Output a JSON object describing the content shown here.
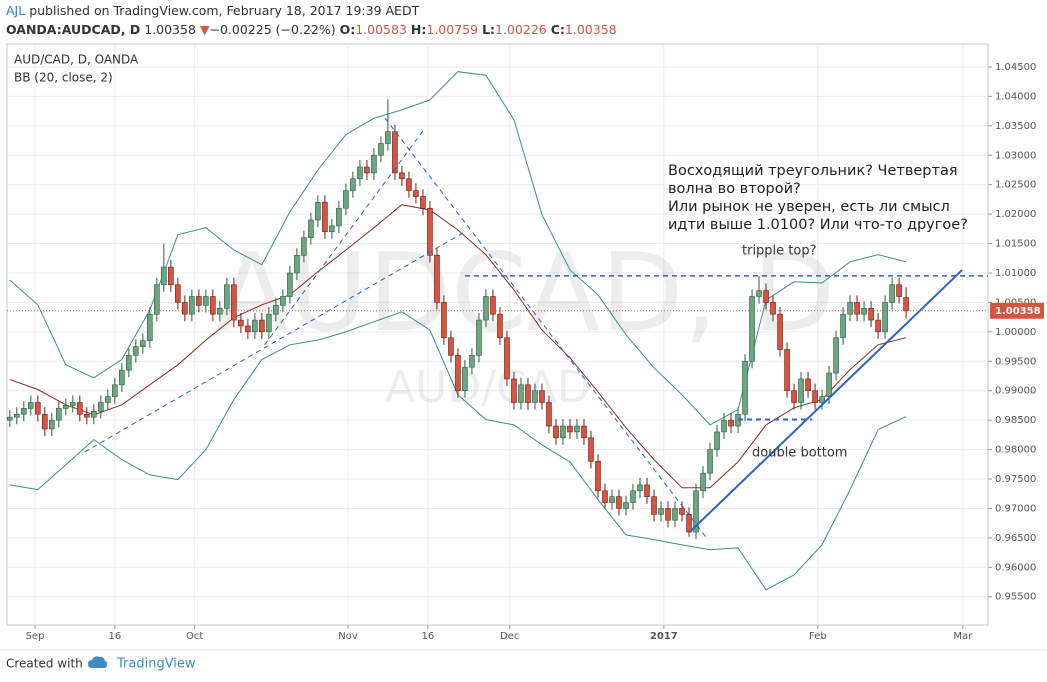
{
  "header": {
    "author": "AJL",
    "published": "published on TradingView.com, February 18, 2017 19:39 AEDT",
    "symbol": "OANDA:AUDCAD, D",
    "last": "1.00358",
    "direction": "▼",
    "change": "−0.00225 (−0.22%)",
    "ohlc": [
      {
        "label": "O:",
        "value": "1.00583"
      },
      {
        "label": "H:",
        "value": "1.00759"
      },
      {
        "label": "L:",
        "value": "1.00226"
      },
      {
        "label": "C:",
        "value": "1.00358"
      }
    ]
  },
  "footer": {
    "created_with": "Created with",
    "brand": "TradingView"
  },
  "chart_data": {
    "type": "candlestick",
    "title": "AUD/CAD, D, OANDA",
    "indicator": "BB (20, close, 2)",
    "watermark": "AUDCAD, D",
    "watermark_sub": "AUD/CAD",
    "note": [
      "Восходящий треугольник? Четвертая",
      "волна во второй?",
      "Или рынок не уверен, есть ли смысл",
      "идти выше 1.0100? Или что-то другое?"
    ],
    "note_top": "tripple top?",
    "note_bottom": "double bottom",
    "up_color": "#6ba583",
    "down_color": "#d75442",
    "grid": true,
    "xlim": [
      -0.4,
      139.7
    ],
    "ylim": [
      0.9502,
      1.0489
    ],
    "xticks": [
      {
        "value": 3.6,
        "label": "Sep"
      },
      {
        "value": 15,
        "label": "16"
      },
      {
        "value": 26.4,
        "label": "Oct"
      },
      {
        "value": 48.3,
        "label": "Nov"
      },
      {
        "value": 59.7,
        "label": "16"
      },
      {
        "value": 71.4,
        "label": "Dec"
      },
      {
        "value": 93.4,
        "label": "2017"
      },
      {
        "value": 115.4,
        "label": "Feb"
      },
      {
        "value": 136.1,
        "label": "Mar"
      }
    ],
    "yticks": [
      {
        "value": 0.955,
        "label": "0.95500"
      },
      {
        "value": 0.96,
        "label": "0.96000"
      },
      {
        "value": 0.965,
        "label": "0.96500"
      },
      {
        "value": 0.97,
        "label": "0.97000"
      },
      {
        "value": 0.975,
        "label": "0.97500"
      },
      {
        "value": 0.98,
        "label": "0.98000"
      },
      {
        "value": 0.985,
        "label": "0.98500"
      },
      {
        "value": 0.99,
        "label": "0.99000"
      },
      {
        "value": 0.995,
        "label": "0.99500"
      },
      {
        "value": 1.0,
        "label": "1.00000"
      },
      {
        "value": 1.005,
        "label": "1.00500"
      },
      {
        "value": 1.01,
        "label": "1.01000"
      },
      {
        "value": 1.015,
        "label": "1.01500"
      },
      {
        "value": 1.02,
        "label": "1.02000"
      },
      {
        "value": 1.025,
        "label": "1.02500"
      },
      {
        "value": 1.03,
        "label": "1.03000"
      },
      {
        "value": 1.035,
        "label": "1.03500"
      },
      {
        "value": 1.04,
        "label": "1.04000"
      },
      {
        "value": 1.045,
        "label": "1.04500"
      }
    ],
    "open": [
      0.985,
      0.9855,
      0.986,
      0.987,
      0.988,
      0.986,
      0.9835,
      0.985,
      0.987,
      0.9875,
      0.988,
      0.986,
      0.9855,
      0.9865,
      0.988,
      0.989,
      0.991,
      0.9935,
      0.996,
      0.9975,
      0.9985,
      1.003,
      1.008,
      1.011,
      1.008,
      1.005,
      1.003,
      1.006,
      1.0045,
      1.006,
      1.003,
      1.004,
      1.008,
      1.002,
      1.001,
      1.0,
      1.002,
      1.0,
      1.003,
      1.0045,
      1.006,
      1.01,
      1.013,
      1.016,
      1.019,
      1.022,
      1.017,
      1.018,
      1.021,
      1.024,
      1.026,
      1.028,
      1.027,
      1.03,
      1.032,
      1.034,
      1.027,
      1.026,
      1.024,
      1.023,
      1.021,
      1.013,
      1.005,
      0.999,
      0.996,
      0.99,
      0.994,
      0.996,
      1.002,
      1.006,
      1.003,
      0.999,
      0.992,
      0.988,
      0.991,
      0.988,
      0.99,
      0.988,
      0.984,
      0.982,
      0.984,
      0.983,
      0.984,
      0.982,
      0.978,
      0.973,
      0.971,
      0.972,
      0.97,
      0.971,
      0.973,
      0.974,
      0.972,
      0.969,
      0.97,
      0.968,
      0.97,
      0.969,
      0.966,
      0.973,
      0.976,
      0.98,
      0.983,
      0.985,
      0.984,
      0.986,
      0.995,
      1.006,
      1.007,
      1.005,
      1.003,
      0.997,
      0.99,
      0.988,
      0.992,
      0.99,
      0.988,
      0.989,
      0.993,
      0.999,
      1.003,
      1.005,
      1.003,
      1.004,
      1.002,
      1.0,
      1.005,
      1.008,
      1.00583
    ],
    "high": [
      0.9867,
      0.9872,
      0.9882,
      0.9892,
      0.9892,
      0.9872,
      0.9862,
      0.9882,
      0.9887,
      0.9892,
      0.9892,
      0.9872,
      0.9877,
      0.9892,
      0.9902,
      0.9922,
      0.9947,
      0.9972,
      0.9987,
      0.9997,
      1.0042,
      1.0092,
      1.015,
      1.0122,
      1.0092,
      1.0062,
      1.0072,
      1.0072,
      1.0072,
      1.0072,
      1.0052,
      1.0092,
      1.0092,
      1.0032,
      1.0022,
      1.0032,
      1.0032,
      1.0042,
      1.0057,
      1.0072,
      1.0112,
      1.0142,
      1.0172,
      1.0202,
      1.0232,
      1.0232,
      1.0192,
      1.0222,
      1.0252,
      1.0272,
      1.0292,
      1.0292,
      1.0312,
      1.0332,
      1.0395,
      1.0352,
      1.0282,
      1.0272,
      1.0252,
      1.0242,
      1.0222,
      1.0142,
      1.0062,
      1.0002,
      0.9972,
      0.9952,
      0.9972,
      1.0032,
      1.0072,
      1.0072,
      1.0042,
      1.0002,
      0.9932,
      0.9922,
      0.9922,
      0.9912,
      0.9912,
      0.9892,
      0.9852,
      0.9852,
      0.9852,
      0.9852,
      0.9852,
      0.9832,
      0.9792,
      0.9742,
      0.9732,
      0.9732,
      0.9722,
      0.9742,
      0.9752,
      0.9752,
      0.9732,
      0.9712,
      0.9712,
      0.9712,
      0.9712,
      0.9702,
      0.9742,
      0.9772,
      0.9812,
      0.9842,
      0.9862,
      0.9862,
      0.9872,
      0.9962,
      1.0072,
      1.0095,
      1.0082,
      1.0062,
      1.0042,
      0.9982,
      0.9912,
      0.9932,
      0.9932,
      0.9912,
      0.9902,
      0.9942,
      1.0002,
      1.0042,
      1.0062,
      1.0062,
      1.0052,
      1.0052,
      1.0032,
      1.0062,
      1.0092,
      1.0092,
      1.00759
    ],
    "low": [
      0.9838,
      0.9843,
      0.9848,
      0.9858,
      0.9848,
      0.9823,
      0.9823,
      0.9838,
      0.9858,
      0.9863,
      0.9848,
      0.9843,
      0.9843,
      0.9853,
      0.9868,
      0.9878,
      0.9898,
      0.9923,
      0.9948,
      0.9963,
      0.9973,
      1.0018,
      1.0068,
      1.0068,
      1.0038,
      1.0018,
      1.0018,
      1.0033,
      1.0033,
      1.0018,
      1.0018,
      1.0028,
      1.0008,
      0.9998,
      0.9988,
      0.9988,
      0.9988,
      0.9988,
      1.0018,
      1.0033,
      1.0048,
      1.0088,
      1.0118,
      1.0148,
      1.0178,
      1.0158,
      1.0158,
      1.0168,
      1.0198,
      1.0228,
      1.0248,
      1.0258,
      1.0258,
      1.0288,
      1.0308,
      1.0258,
      1.0248,
      1.0228,
      1.0218,
      1.0198,
      1.0118,
      1.0038,
      0.9978,
      0.9948,
      0.9888,
      0.9888,
      0.9928,
      0.9948,
      1.0008,
      1.0018,
      0.9978,
      0.9908,
      0.9868,
      0.9868,
      0.9868,
      0.9868,
      0.9868,
      0.9828,
      0.9808,
      0.9808,
      0.9818,
      0.9818,
      0.9808,
      0.9768,
      0.9718,
      0.9698,
      0.9698,
      0.9688,
      0.9688,
      0.9698,
      0.9718,
      0.9708,
      0.9678,
      0.9678,
      0.9668,
      0.9668,
      0.9678,
      0.9652,
      0.9648,
      0.9718,
      0.9748,
      0.9788,
      0.9818,
      0.9828,
      0.9828,
      0.9848,
      0.9938,
      1.0048,
      1.0038,
      1.0018,
      0.9958,
      0.9888,
      0.9868,
      0.9868,
      0.9888,
      0.9868,
      0.9868,
      0.9878,
      0.9918,
      0.9978,
      1.0018,
      1.0018,
      1.0018,
      1.0008,
      0.9988,
      0.9988,
      1.0038,
      1.0048,
      1.00226
    ],
    "close": [
      0.9855,
      0.986,
      0.987,
      0.988,
      0.986,
      0.9835,
      0.985,
      0.987,
      0.9875,
      0.988,
      0.986,
      0.9855,
      0.9865,
      0.988,
      0.989,
      0.991,
      0.9935,
      0.996,
      0.9975,
      0.9985,
      1.003,
      1.008,
      1.011,
      1.008,
      1.005,
      1.003,
      1.006,
      1.0045,
      1.006,
      1.003,
      1.004,
      1.008,
      1.002,
      1.001,
      1.0,
      1.002,
      1.0,
      1.003,
      1.0045,
      1.006,
      1.01,
      1.013,
      1.016,
      1.019,
      1.022,
      1.017,
      1.018,
      1.021,
      1.024,
      1.026,
      1.028,
      1.027,
      1.03,
      1.032,
      1.034,
      1.027,
      1.026,
      1.024,
      1.023,
      1.021,
      1.013,
      1.005,
      0.999,
      0.996,
      0.99,
      0.994,
      0.996,
      1.002,
      1.006,
      1.003,
      0.999,
      0.992,
      0.988,
      0.991,
      0.988,
      0.99,
      0.988,
      0.984,
      0.982,
      0.984,
      0.983,
      0.984,
      0.982,
      0.978,
      0.973,
      0.971,
      0.972,
      0.97,
      0.971,
      0.973,
      0.974,
      0.972,
      0.969,
      0.97,
      0.968,
      0.97,
      0.969,
      0.966,
      0.973,
      0.976,
      0.98,
      0.983,
      0.985,
      0.984,
      0.986,
      0.995,
      1.006,
      1.007,
      1.005,
      1.003,
      0.997,
      0.99,
      0.988,
      0.992,
      0.99,
      0.988,
      0.989,
      0.993,
      0.999,
      1.003,
      1.005,
      1.003,
      1.004,
      1.002,
      1.0,
      1.005,
      1.008,
      1.006,
      1.00358
    ],
    "last_price": 1.00358,
    "bands": {
      "x": [
        0,
        4,
        8,
        12,
        16,
        20,
        24,
        28,
        32,
        36,
        40,
        44,
        48,
        52,
        56,
        60,
        64,
        68,
        72,
        76,
        80,
        84,
        88,
        92,
        96,
        100,
        104,
        108,
        112,
        116,
        120,
        124,
        128
      ],
      "series": [
        {
          "color": "#3a8f8c",
          "values": [
            1.0088,
            1.0046,
            0.9944,
            0.9922,
            0.9953,
            1.0037,
            1.0165,
            1.0177,
            1.0139,
            1.0114,
            1.0204,
            1.0275,
            1.0335,
            1.0363,
            1.0377,
            1.0394,
            1.0442,
            1.0436,
            1.036,
            1.0199,
            1.0105,
            1.0063,
            0.9995,
            0.9939,
            0.9893,
            0.9842,
            0.9868,
            1.0054,
            1.0085,
            1.0083,
            1.0119,
            1.0131,
            1.0119
          ]
        },
        {
          "color": "#8b2e22",
          "values": [
            0.9919,
            0.9902,
            0.9876,
            0.9859,
            0.9876,
            0.991,
            0.9944,
            0.9986,
            1.0024,
            1.0046,
            1.0063,
            1.0102,
            1.0139,
            1.0177,
            1.0216,
            1.0207,
            1.0173,
            1.0131,
            1.0071,
            1.0003,
            0.9956,
            0.9898,
            0.9837,
            0.9783,
            0.9735,
            0.9735,
            0.9779,
            0.9842,
            0.9871,
            0.9885,
            0.9936,
            0.9978,
            0.999
          ]
        },
        {
          "color": "#3a8f8c",
          "values": [
            0.974,
            0.9732,
            0.9774,
            0.9817,
            0.9783,
            0.9757,
            0.9749,
            0.98,
            0.9885,
            0.9953,
            0.9978,
            0.9986,
            1.0,
            1.0017,
            1.0034,
            1.0003,
            0.9893,
            0.9851,
            0.9842,
            0.9808,
            0.9779,
            0.9715,
            0.9655,
            0.9647,
            0.9638,
            0.963,
            0.9633,
            0.9562,
            0.9587,
            0.9638,
            0.9732,
            0.9834,
            0.9856
          ]
        }
      ]
    },
    "drawings": [
      {
        "x": [
          97.1,
          136
        ],
        "y": [
          0.966,
          1.0105
        ],
        "color": "#2962c8",
        "dashed": false,
        "width": 2
      },
      {
        "x": [
          65,
          139.7
        ],
        "y": [
          1.0095,
          1.0095
        ],
        "color": "#2962c8",
        "dashed": true,
        "width": 1.5
      },
      {
        "x": [
          104,
          114.6
        ],
        "y": [
          0.9851,
          0.9851
        ],
        "color": "#2962c8",
        "dashed": true,
        "width": 2
      },
      {
        "x": [
          10.7,
          65
        ],
        "y": [
          0.9796,
          1.017
        ],
        "color": "#2962c8",
        "dashed": true,
        "width": 1
      },
      {
        "x": [
          36.4,
          59.3
        ],
        "y": [
          0.9978,
          1.0346
        ],
        "color": "#2962c8",
        "dashed": true,
        "width": 1
      },
      {
        "x": [
          53.6,
          99.7
        ],
        "y": [
          1.0363,
          0.9647
        ],
        "color": "#2962c8",
        "dashed": true,
        "width": 1
      }
    ]
  }
}
